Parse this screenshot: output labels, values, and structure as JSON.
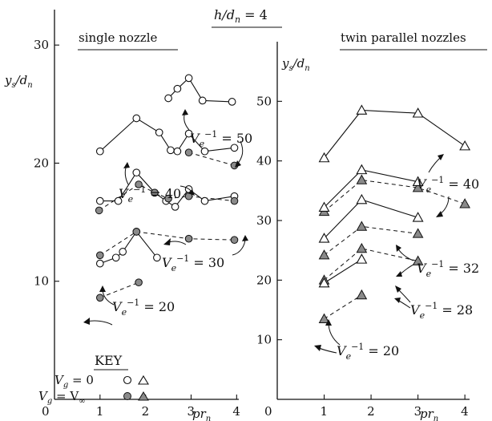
{
  "header": {
    "title": "h/d",
    "title_sub": "n",
    "title_tail": " = 4"
  },
  "chart_data": [
    {
      "type": "line",
      "title": "single nozzle",
      "xlabel": "pr",
      "xlabel_sub": "n",
      "ylabel": "y",
      "ylabel_sub1": "s",
      "ylabel_mid": "/d",
      "ylabel_sub2": "n",
      "xlim": [
        0,
        4.1
      ],
      "ylim": [
        0,
        33
      ],
      "xticks": [
        0,
        1,
        2,
        3,
        4
      ],
      "yticks": [
        10,
        20,
        30
      ],
      "marker": "circle",
      "series": [
        {
          "group": "50",
          "style": "solid",
          "fill": "open",
          "x": [
            2.5,
            2.7,
            2.95,
            3.25,
            3.9
          ],
          "y": [
            25.5,
            26.3,
            27.2,
            25.3,
            25.2
          ]
        },
        {
          "group": "40",
          "style": "solid",
          "fill": "open",
          "x": [
            1.0,
            1.8,
            2.3,
            2.55,
            2.7,
            2.95,
            3.3,
            3.95
          ],
          "y": [
            21.0,
            23.8,
            22.6,
            21.1,
            21.0,
            22.5,
            21.0,
            21.3
          ]
        },
        {
          "group": "40",
          "style": "dashed",
          "fill": "filled",
          "x": [
            2.95,
            3.95
          ],
          "y": [
            20.9,
            19.8
          ]
        },
        {
          "group": "30",
          "style": "solid",
          "fill": "open",
          "x": [
            1.0,
            1.4,
            1.8,
            2.2,
            2.45,
            2.65,
            2.95,
            3.3,
            3.95
          ],
          "y": [
            16.8,
            16.8,
            19.2,
            17.5,
            16.8,
            16.3,
            17.8,
            16.8,
            17.2
          ]
        },
        {
          "group": "30",
          "style": "dashed",
          "fill": "filled",
          "x": [
            0.98,
            1.85,
            2.2,
            2.5,
            2.95,
            3.95
          ],
          "y": [
            16.0,
            18.2,
            17.5,
            17.0,
            17.2,
            16.8
          ]
        },
        {
          "group": "20",
          "style": "solid",
          "fill": "open",
          "x": [
            1.0,
            1.35,
            1.5,
            1.8,
            2.25
          ],
          "y": [
            11.5,
            12.0,
            12.5,
            14.2,
            12.0
          ]
        },
        {
          "group": "20",
          "style": "dashed",
          "fill": "filled",
          "x": [
            1.0,
            1.8,
            2.95,
            3.95
          ],
          "y": [
            12.2,
            14.2,
            13.6,
            13.5
          ]
        },
        {
          "group": "20",
          "style": "dashed",
          "fill": "filled",
          "x": [
            1.0,
            1.85
          ],
          "y": [
            8.6,
            9.9
          ]
        }
      ],
      "curve_labels": [
        {
          "text": "V",
          "sub": "e",
          "sup": "−1",
          "value": " = 50"
        },
        {
          "text": "V",
          "sub": "e",
          "sup": "−1",
          "value": " = 40"
        },
        {
          "text": "V",
          "sub": "e",
          "sup": "−1",
          "value": " = 30"
        },
        {
          "text": "V",
          "sub": "e",
          "sup": "−1",
          "value": " = 20"
        }
      ]
    },
    {
      "type": "line",
      "title": "twin parallel nozzles",
      "xlabel": "pr",
      "xlabel_sub": "n",
      "ylabel": "y",
      "ylabel_sub1": "s",
      "ylabel_mid": "/d",
      "ylabel_sub2": "n",
      "xlim": [
        0,
        4.1
      ],
      "ylim": [
        0,
        60
      ],
      "xticks": [
        0,
        1,
        2,
        3,
        4
      ],
      "yticks": [
        10,
        20,
        30,
        40,
        50
      ],
      "marker": "triangle",
      "series": [
        {
          "group": "40",
          "style": "solid",
          "fill": "open",
          "x": [
            1.0,
            1.8,
            3.0,
            4.0
          ],
          "y": [
            40.5,
            48.5,
            48.0,
            42.5
          ]
        },
        {
          "group": "40",
          "style": "dashed",
          "fill": "filled",
          "x": [
            1.0,
            1.8,
            3.0,
            4.0
          ],
          "y": [
            31.5,
            36.8,
            35.5,
            32.8
          ]
        },
        {
          "group": "32",
          "style": "solid",
          "fill": "open",
          "x": [
            1.0,
            1.8,
            3.0
          ],
          "y": [
            32.2,
            38.5,
            36.5
          ]
        },
        {
          "group": "32",
          "style": "dashed",
          "fill": "filled",
          "x": [
            1.0,
            1.8,
            3.0
          ],
          "y": [
            24.2,
            29.0,
            27.8
          ]
        },
        {
          "group": "28",
          "style": "solid",
          "fill": "open",
          "x": [
            1.0,
            1.8,
            3.0
          ],
          "y": [
            27.0,
            33.5,
            30.5
          ]
        },
        {
          "group": "28",
          "style": "dashed",
          "fill": "filled",
          "x": [
            1.0,
            1.8,
            3.0
          ],
          "y": [
            20.0,
            25.3,
            23.2
          ]
        },
        {
          "group": "20",
          "style": "solid",
          "fill": "open",
          "x": [
            1.0,
            1.8
          ],
          "y": [
            19.5,
            23.5
          ]
        },
        {
          "group": "20",
          "style": "dashed",
          "fill": "filled",
          "x": [
            1.0,
            1.8
          ],
          "y": [
            13.5,
            17.5
          ]
        }
      ],
      "curve_labels": [
        {
          "text": "V",
          "sub": "e",
          "sup": "−1",
          "value": " = 40"
        },
        {
          "text": "V",
          "sub": "e",
          "sup": "−1",
          "value": " = 32"
        },
        {
          "text": "V",
          "sub": "e",
          "sup": "−1",
          "value": " = 28"
        },
        {
          "text": "V",
          "sub": "e",
          "sup": "−1",
          "value": " = 20"
        }
      ]
    }
  ],
  "key": {
    "title": "KEY",
    "row1": {
      "var": "V",
      "sub": "g",
      "eq": " = 0"
    },
    "row2": {
      "var": "V",
      "sub": "g",
      "eq": " = V",
      "sub2": "∞"
    }
  }
}
